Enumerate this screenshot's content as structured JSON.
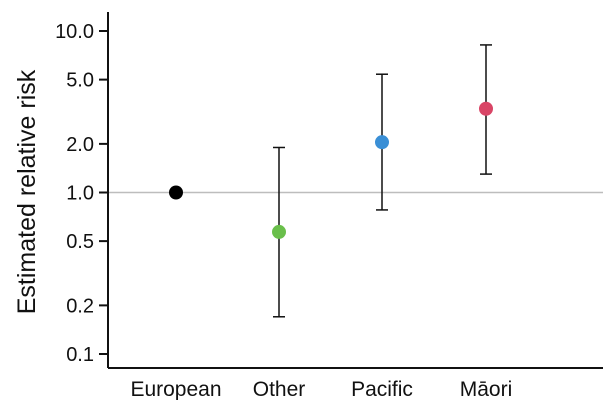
{
  "chart_data": {
    "type": "scatter",
    "title": "",
    "xlabel": "",
    "ylabel": "Estimated relative risk",
    "y_scale": "log",
    "ylim": [
      0.09,
      14
    ],
    "y_ticks": [
      0.1,
      0.2,
      0.5,
      1.0,
      2.0,
      5.0,
      10.0
    ],
    "y_tick_labels": [
      "0.1",
      "0.2",
      "0.5",
      "1.0",
      "2.0",
      "5.0",
      "10.0"
    ],
    "reference_line": 1.0,
    "reference_line_color": "#bdbdbd",
    "grid": false,
    "legend": "none",
    "categories": [
      "European",
      "Other",
      "Pacific",
      "Māori"
    ],
    "points": [
      {
        "category": "European",
        "estimate": 1.0,
        "lower": null,
        "upper": null,
        "color": "#000000"
      },
      {
        "category": "Other",
        "estimate": 0.57,
        "lower": 0.17,
        "upper": 1.9,
        "color": "#6abf4b"
      },
      {
        "category": "Pacific",
        "estimate": 2.05,
        "lower": 0.78,
        "upper": 5.4,
        "color": "#3a8fd6"
      },
      {
        "category": "Māori",
        "estimate": 3.3,
        "lower": 1.3,
        "upper": 8.2,
        "color": "#d94566"
      }
    ]
  }
}
